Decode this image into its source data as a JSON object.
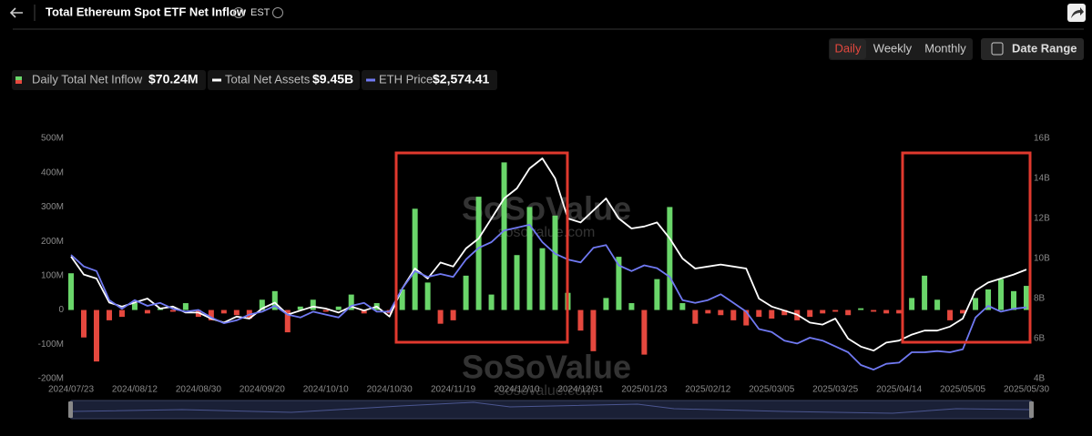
{
  "header": {
    "title": "Total Ethereum Spot ETF Net Inflow",
    "timezone": "EST",
    "periods": [
      "Daily",
      "Weekly",
      "Monthly"
    ],
    "date_range": "Date Range"
  },
  "watermark": {
    "brand": "SoSoValue",
    "site": "sosovalue.com"
  },
  "chart_data": {
    "type": "bar-line",
    "categories": [
      "2024/07/23",
      null,
      null,
      null,
      null,
      "2024/08/12",
      null,
      null,
      null,
      null,
      "2024/08/30",
      null,
      null,
      null,
      null,
      "2024/09/20",
      null,
      null,
      null,
      null,
      "2024/10/10",
      null,
      null,
      null,
      null,
      "2024/10/30",
      null,
      null,
      null,
      null,
      "2024/11/19",
      null,
      null,
      null,
      null,
      "2024/12/10",
      null,
      null,
      null,
      null,
      "2024/12/31",
      null,
      null,
      null,
      null,
      "2025/01/23",
      null,
      null,
      null,
      null,
      "2025/02/12",
      null,
      null,
      null,
      null,
      "2025/03/05",
      null,
      null,
      null,
      null,
      "2025/03/25",
      null,
      null,
      null,
      null,
      "2025/04/14",
      null,
      null,
      null,
      null,
      "2025/05/05",
      null,
      null,
      null,
      null,
      "2025/05/30"
    ],
    "legend_values": [
      "$70.24M",
      "$9.45B",
      "$2,574.41"
    ],
    "positive_color": "#6ad66a",
    "negative_color": "#e5483e",
    "series": [
      {
        "name": "Daily Total Net Inflow",
        "color": "#6ad66a",
        "values": [
          107,
          -80,
          -150,
          -30,
          -20,
          20,
          -10,
          5,
          -5,
          20,
          -20,
          -30,
          -10,
          -15,
          -25,
          30,
          55,
          -65,
          10,
          30,
          -5,
          10,
          45,
          -10,
          20,
          -10,
          60,
          295,
          80,
          -40,
          -30,
          100,
          330,
          45,
          430,
          160,
          300,
          180,
          275,
          50,
          -60,
          -120,
          35,
          155,
          20,
          -130,
          90,
          300,
          20,
          -40,
          -10,
          -15,
          -30,
          -45,
          -20,
          -25,
          -15,
          -30,
          -20,
          -10,
          -5,
          -15,
          5,
          -5,
          -10,
          -10,
          35,
          100,
          30,
          -30,
          -10,
          35,
          60,
          90,
          55,
          70.24
        ]
      },
      {
        "name": "Total Net Assets",
        "color": "#ffffff",
        "axis": "y2",
        "values": [
          10.1,
          9.2,
          9.0,
          7.8,
          7.6,
          7.8,
          8.0,
          7.5,
          7.6,
          7.3,
          7.3,
          7.0,
          6.8,
          7.1,
          7.0,
          7.5,
          7.8,
          7.2,
          7.4,
          7.6,
          7.5,
          7.3,
          7.6,
          7.4,
          7.6,
          7.1,
          8.5,
          9.5,
          9.0,
          9.8,
          9.6,
          10.5,
          11.0,
          12.0,
          13.0,
          13.5,
          14.5,
          15.0,
          14.0,
          12.0,
          11.8,
          12.4,
          13.0,
          12.0,
          11.5,
          11.6,
          11.8,
          11.0,
          10.0,
          9.5,
          9.6,
          9.7,
          9.6,
          9.5,
          8.0,
          7.6,
          7.4,
          7.2,
          6.8,
          6.7,
          7.0,
          6.0,
          5.6,
          5.4,
          5.8,
          5.9,
          6.2,
          6.4,
          6.4,
          6.6,
          7.0,
          8.4,
          8.8,
          9.0,
          9.2,
          9.45
        ]
      },
      {
        "name": "ETH Price",
        "color": "#7079f2",
        "axis": "y3",
        "values": [
          3480,
          3280,
          3200,
          2700,
          2550,
          2700,
          2600,
          2650,
          2550,
          2500,
          2530,
          2400,
          2300,
          2350,
          2450,
          2500,
          2600,
          2450,
          2400,
          2500,
          2450,
          2400,
          2600,
          2650,
          2500,
          2500,
          2900,
          3200,
          3100,
          3150,
          3100,
          3400,
          3600,
          3700,
          3900,
          3950,
          4000,
          3700,
          3500,
          3400,
          3350,
          3600,
          3650,
          3300,
          3200,
          3300,
          3250,
          3100,
          2700,
          2650,
          2700,
          2800,
          2650,
          2500,
          2200,
          2150,
          2000,
          1950,
          2050,
          2000,
          1900,
          1800,
          1580,
          1500,
          1600,
          1620,
          1800,
          1800,
          1820,
          1800,
          1850,
          2400,
          2600,
          2500,
          2550,
          2574.41
        ]
      }
    ],
    "ylim": [
      -200,
      500
    ],
    "yticks": [
      {
        "value": -200,
        "label": "-200M"
      },
      {
        "value": -100,
        "label": "-100M"
      },
      0,
      {
        "value": 100,
        "label": "100M"
      },
      {
        "value": 200,
        "label": "200M"
      },
      {
        "value": 300,
        "label": "300M"
      },
      {
        "value": 400,
        "label": "400M"
      },
      {
        "value": 500,
        "label": "500M"
      }
    ],
    "y2lim": [
      4,
      16
    ],
    "y2ticks": [
      {
        "value": 4,
        "label": "4B"
      },
      {
        "value": 6,
        "label": "6B"
      },
      {
        "value": 8,
        "label": "8B"
      },
      {
        "value": 10,
        "label": "10B"
      },
      {
        "value": 12,
        "label": "12B"
      },
      {
        "value": 14,
        "label": "14B"
      },
      {
        "value": 16,
        "label": "16B"
      }
    ],
    "y3lim": [
      1344,
      5490
    ],
    "grid": false
  }
}
